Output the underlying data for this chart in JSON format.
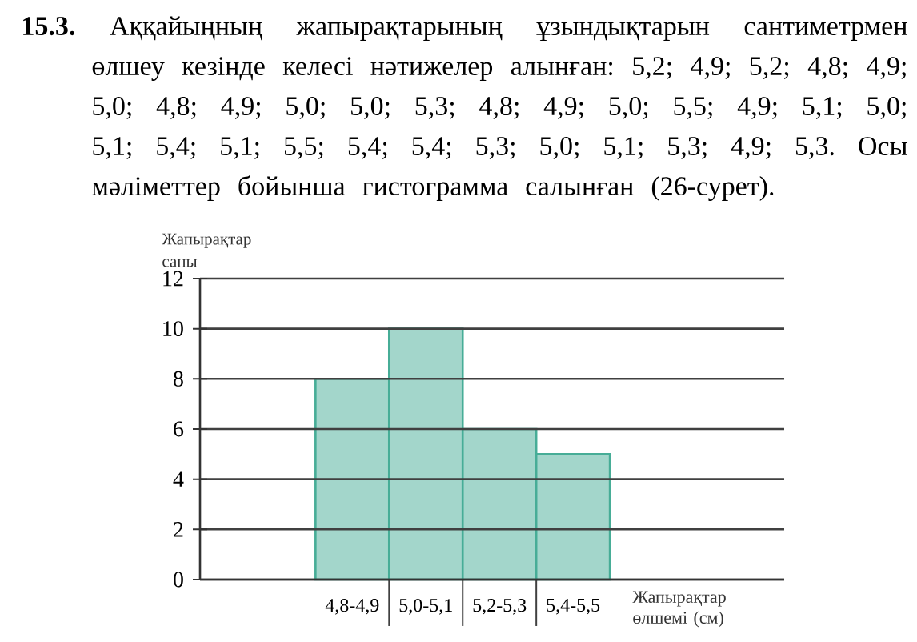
{
  "chart_data": {
    "type": "bar",
    "title": "**15.3.** Аққайыңның жапырақтарының ұзындықтарын сантиметрмен өлшеу кезінде келесі нәтижелер алынған: 5,2; 4,9; 5,2; 4,8; 4,9; 5,0; 4,8; 4,9; 5,0; 5,0; 5,3; 4,8; 4,9; 5,0; 5,5; 4,9; 5,1; 5,0; 5,1; 5,4; 5,1; 5,5; 5,4; 5,4; 5,3; 5,0; 5,1; 5,3; 4,9; 5,3. Осы мәліметтер бойынша гистограмма салынған (26-сурет).",
    "xlabel": "Жапырақтар өлшемі (см)",
    "ylabel": "Жапырақтар саны",
    "categories": [
      "4,8-4,9",
      "5,0-5,1",
      "5,2-5,3",
      "5,4-5,5"
    ],
    "values": [
      8,
      10,
      6,
      5
    ],
    "color": "#a3d6cb",
    "ylim": [
      0,
      12
    ],
    "yticks": [
      0,
      2,
      4,
      6,
      8,
      10,
      12
    ],
    "grid": "y"
  }
}
